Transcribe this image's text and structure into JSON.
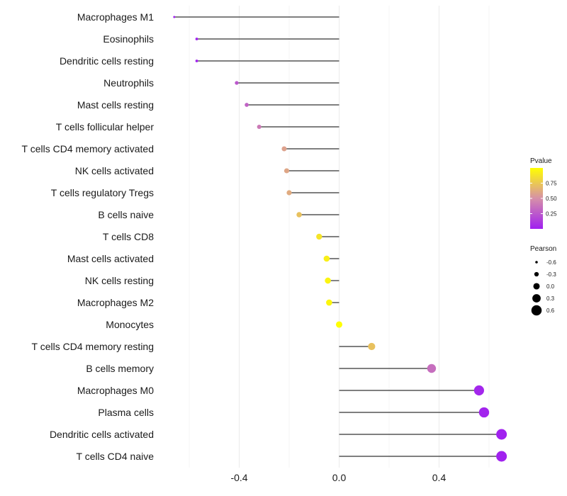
{
  "chart_data": {
    "type": "lollipop",
    "title": "",
    "xlabel": "",
    "ylabel": "",
    "xlim": [
      -0.68,
      0.7
    ],
    "x_ticks": [
      -0.4,
      0.0,
      0.4
    ],
    "x_tick_labels": [
      "-0.4",
      "0.0",
      "0.4"
    ],
    "grid": true,
    "categories": [
      "Macrophages M1",
      "Eosinophils",
      "Dendritic cells resting",
      "Neutrophils",
      "Mast cells resting",
      "T cells follicular helper",
      "T cells CD4 memory activated",
      "NK cells activated",
      "T cells regulatory  Tregs ",
      "B cells naive",
      "T cells CD8",
      "Mast cells activated",
      "NK cells resting",
      "Macrophages M2",
      "Monocytes",
      "T cells CD4 memory resting",
      "B cells memory",
      "Macrophages M0",
      "Plasma cells",
      "Dendritic cells activated",
      "T cells CD4 naive"
    ],
    "pearson": [
      -0.66,
      -0.57,
      -0.57,
      -0.41,
      -0.37,
      -0.32,
      -0.22,
      -0.21,
      -0.2,
      -0.16,
      -0.08,
      -0.05,
      -0.045,
      -0.04,
      0.0,
      0.13,
      0.37,
      0.56,
      0.58,
      0.65,
      0.65
    ],
    "pvalue": [
      0.01,
      0.01,
      0.01,
      0.25,
      0.3,
      0.4,
      0.58,
      0.6,
      0.62,
      0.72,
      0.88,
      0.93,
      0.95,
      0.96,
      1.0,
      0.72,
      0.35,
      0.03,
      0.02,
      0.01,
      0.01
    ],
    "legend_color": {
      "title": "Pvalue",
      "ticks": [
        0.25,
        0.5,
        0.75
      ],
      "tick_labels": [
        "0.25",
        "0.50",
        "0.75"
      ],
      "low_color": "#a020f0",
      "mid_color": "#d690a8",
      "high_color": "#ffff00",
      "placement": "right"
    },
    "legend_size": {
      "title": "Pearson",
      "values": [
        -0.6,
        -0.3,
        0.0,
        0.3,
        0.6
      ],
      "labels": [
        "-0.6",
        "-0.3",
        "0.0",
        "0.3",
        "0.6"
      ],
      "placement": "right"
    },
    "colors": {
      "segment": "#333333",
      "grid": "#ebebeb",
      "text": "#1a1a1a"
    }
  }
}
